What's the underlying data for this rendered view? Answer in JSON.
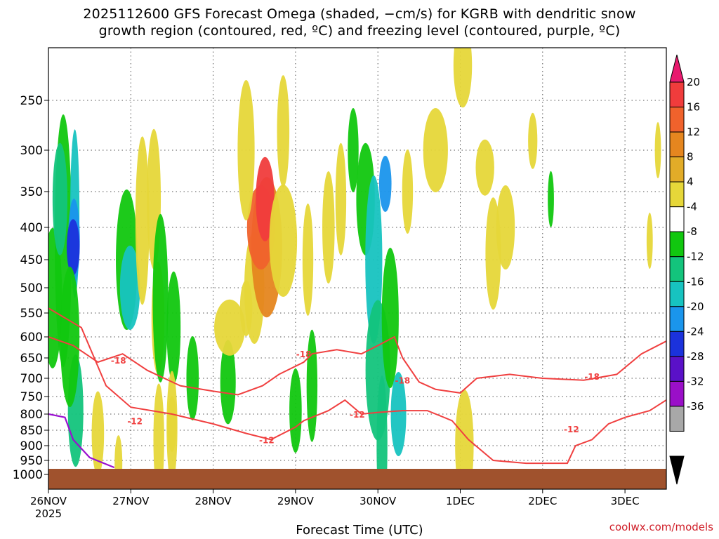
{
  "title_line1": "2025112600 GFS Forecast Omega (shaded, −cm/s) for KGRB with dendritic snow",
  "title_line2": "growth region (contoured, red, ºC) and freezing level (contoured, purple, ºC)",
  "credit": "coolwx.com/models",
  "chart_data": {
    "type": "heatmap",
    "title": "2025112600 GFS Forecast Omega (shaded, −cm/s) for KGRB with dendritic snow growth region (contoured, red, ºC) and freezing level (contoured, purple, ºC)",
    "xlabel": "Forecast Time (UTC)",
    "ylabel": "",
    "x_ticks": [
      "26NOV",
      "27NOV",
      "28NOV",
      "29NOV",
      "30NOV",
      "1DEC",
      "2DEC",
      "3DEC"
    ],
    "x_sublabel": "2025",
    "xlim_days": [
      0,
      7.5
    ],
    "y_ticks": [
      250,
      300,
      350,
      400,
      450,
      500,
      550,
      600,
      650,
      700,
      750,
      800,
      850,
      900,
      950,
      1000
    ],
    "ylim_hpa": [
      200,
      1030
    ],
    "y_scale": "log-pressure (inverted)",
    "grid": true,
    "colorbar": {
      "ticks": [
        20,
        16,
        12,
        8,
        4,
        -4,
        -8,
        -12,
        -16,
        -20,
        -24,
        -28,
        -32,
        -36
      ],
      "colors": [
        "#e81a6e",
        "#f03c3c",
        "#f0622c",
        "#e5861f",
        "#e2ac28",
        "#e6d739",
        "#ffffff",
        "#11c70f",
        "#13c47c",
        "#17c3c0",
        "#1a95ec",
        "#1b32dc",
        "#5a11c8",
        "#9a0fc8",
        "#a8a8a8",
        "#000000"
      ]
    },
    "contour_labels": [
      {
        "text": "-18",
        "color": "#f04040"
      },
      {
        "text": "-18",
        "color": "#f04040"
      },
      {
        "text": "-18",
        "color": "#f04040"
      },
      {
        "text": "-18",
        "color": "#f04040"
      },
      {
        "text": "-12",
        "color": "#f04040"
      },
      {
        "text": "-12",
        "color": "#f04040"
      },
      {
        "text": "-12",
        "color": "#f04040"
      },
      {
        "text": "-12",
        "color": "#f04040"
      }
    ]
  }
}
